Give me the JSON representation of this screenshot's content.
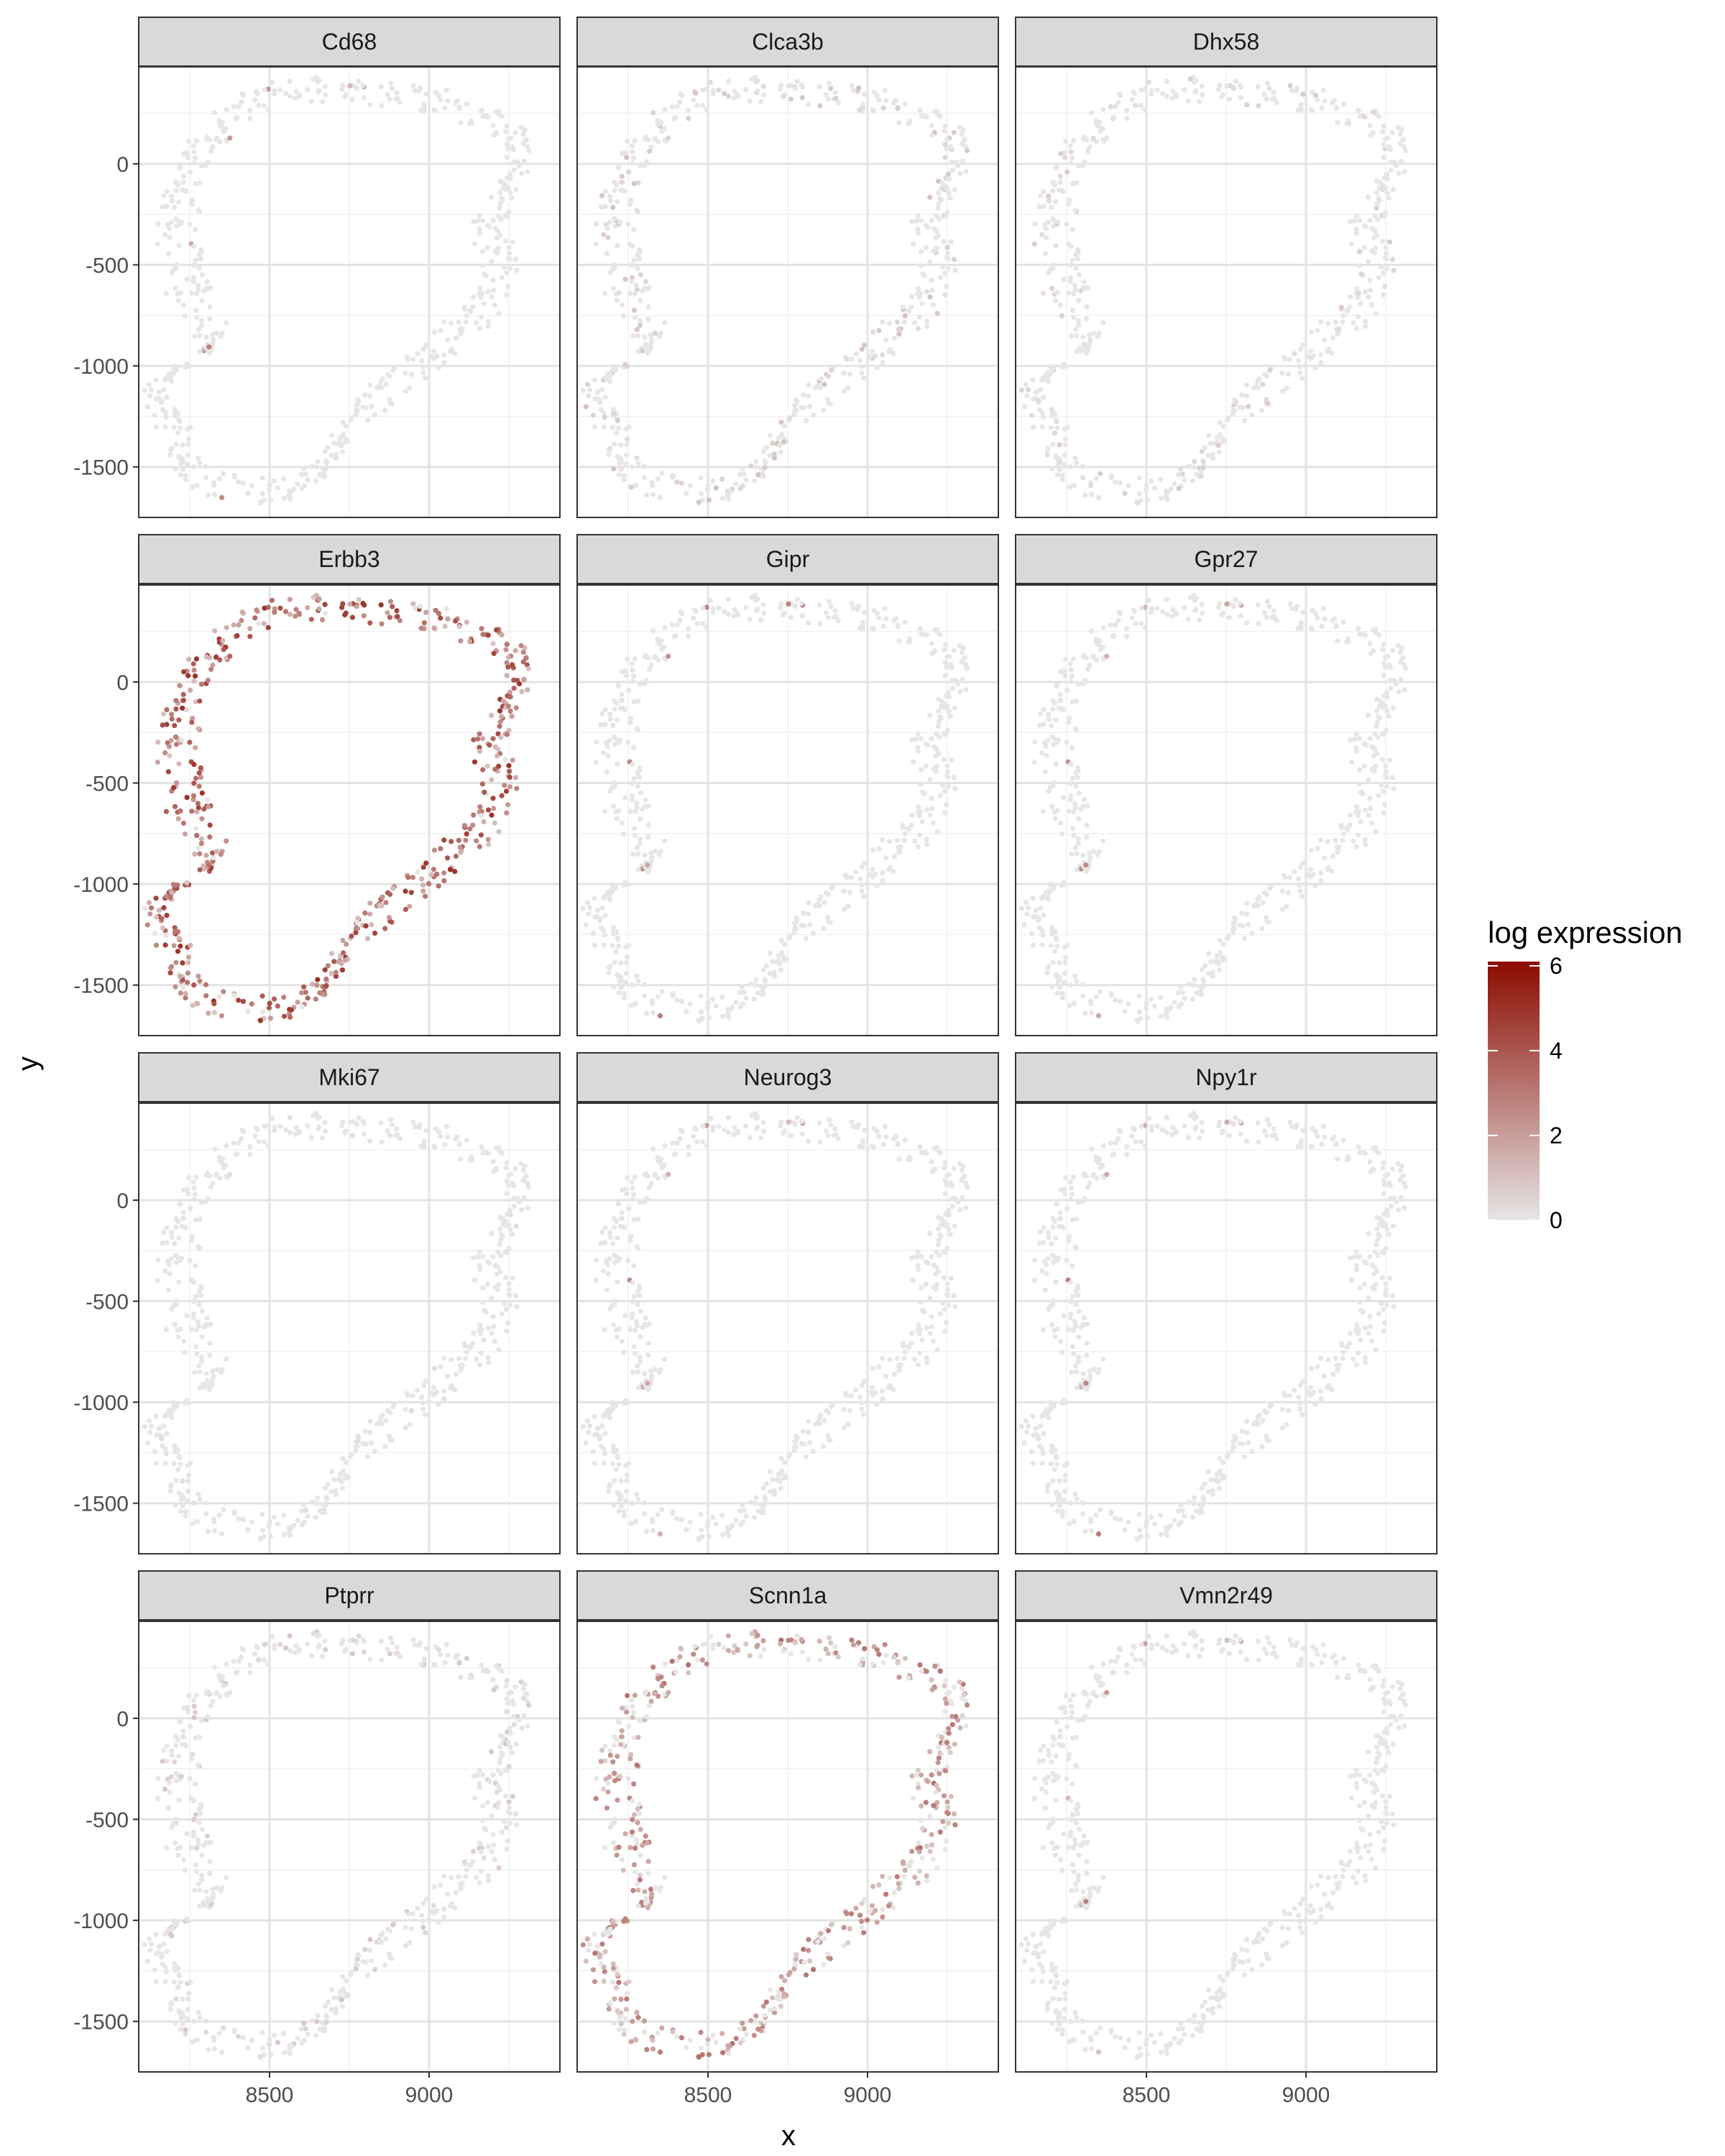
{
  "chart_data": {
    "type": "scatter",
    "xlabel": "x",
    "ylabel": "y",
    "xlim": [
      8090,
      9410
    ],
    "ylim": [
      -1750,
      480
    ],
    "x_ticks": [
      8500,
      9000
    ],
    "x_minor_ticks": [
      8250,
      8750,
      9250
    ],
    "y_ticks": [
      0,
      -500,
      -1000,
      -1500
    ],
    "y_minor_ticks": [
      250,
      -250,
      -750,
      -1250
    ],
    "grid": true,
    "legend": {
      "title": "log expression",
      "placement": "right",
      "range": [
        0,
        6.1
      ],
      "ticks": [
        6,
        4,
        2,
        0
      ],
      "color_low": "#e6e6e6",
      "color_high": "#8b0b00"
    },
    "tissue_outline": [
      [
        8540,
        330
      ],
      [
        8600,
        350
      ],
      [
        8700,
        330
      ],
      [
        8820,
        325
      ],
      [
        8920,
        310
      ],
      [
        9010,
        280
      ],
      [
        9100,
        250
      ],
      [
        9180,
        200
      ],
      [
        9235,
        150
      ],
      [
        9260,
        80
      ],
      [
        9270,
        0
      ],
      [
        9240,
        -100
      ],
      [
        9190,
        -200
      ],
      [
        9165,
        -300
      ],
      [
        9190,
        -420
      ],
      [
        9210,
        -520
      ],
      [
        9170,
        -640
      ],
      [
        9110,
        -760
      ],
      [
        9050,
        -850
      ],
      [
        8990,
        -930
      ],
      [
        8920,
        -1020
      ],
      [
        8850,
        -1120
      ],
      [
        8780,
        -1200
      ],
      [
        8730,
        -1300
      ],
      [
        8700,
        -1400
      ],
      [
        8660,
        -1500
      ],
      [
        8590,
        -1560
      ],
      [
        8500,
        -1600
      ],
      [
        8400,
        -1590
      ],
      [
        8300,
        -1540
      ],
      [
        8240,
        -1440
      ],
      [
        8220,
        -1320
      ],
      [
        8185,
        -1210
      ],
      [
        8150,
        -1120
      ],
      [
        8195,
        -1030
      ],
      [
        8280,
        -960
      ],
      [
        8340,
        -860
      ],
      [
        8310,
        -740
      ],
      [
        8270,
        -620
      ],
      [
        8250,
        -500
      ],
      [
        8240,
        -390
      ],
      [
        8235,
        -280
      ],
      [
        8245,
        -160
      ],
      [
        8260,
        -50
      ],
      [
        8300,
        50
      ],
      [
        8360,
        150
      ],
      [
        8420,
        240
      ],
      [
        8480,
        300
      ]
    ],
    "panels": [
      {
        "gene": "Cd68",
        "mean_expression": 0.05
      },
      {
        "gene": "Clca3b",
        "mean_expression": 0.55
      },
      {
        "gene": "Dhx58",
        "mean_expression": 0.4
      },
      {
        "gene": "Erbb3",
        "mean_expression": 2.6
      },
      {
        "gene": "Gipr",
        "mean_expression": 0.03
      },
      {
        "gene": "Gpr27",
        "mean_expression": 0.06
      },
      {
        "gene": "Mki67",
        "mean_expression": 0.15
      },
      {
        "gene": "Neurog3",
        "mean_expression": 0.07
      },
      {
        "gene": "Npy1r",
        "mean_expression": 0.07
      },
      {
        "gene": "Ptprr",
        "mean_expression": 0.45
      },
      {
        "gene": "Scnn1a",
        "mean_expression": 1.7
      },
      {
        "gene": "Vmn2r49",
        "mean_expression": 0.03
      }
    ]
  }
}
